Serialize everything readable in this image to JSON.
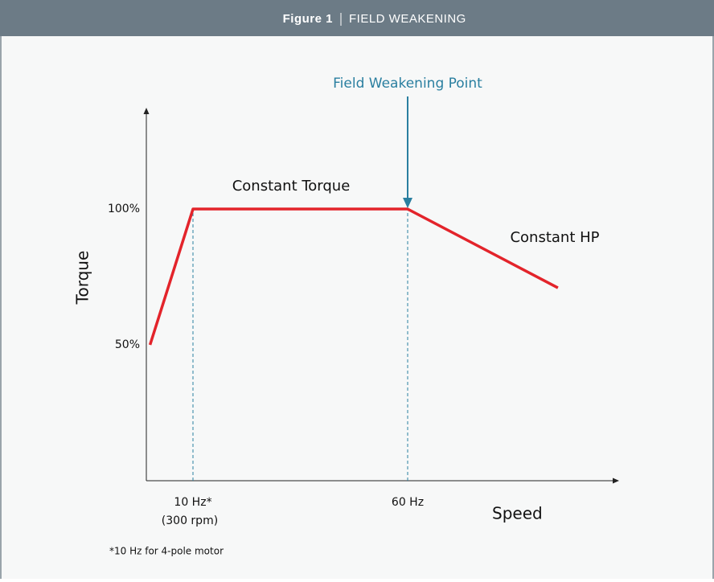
{
  "chart_data": {
    "type": "line",
    "figure_label": "Figure 1",
    "title": "FIELD WEAKENING",
    "x_label": "Speed",
    "y_label": "Torque",
    "xlim": [
      0,
      110
    ],
    "ylim": [
      0,
      137
    ],
    "xticks": [
      {
        "value": 10,
        "label": "10 Hz*"
      },
      {
        "value": 60,
        "label": "60 Hz"
      }
    ],
    "yticks": [
      {
        "value": 50,
        "label": "50%"
      },
      {
        "value": 100,
        "label": "100%"
      }
    ],
    "series": [
      {
        "name": "Torque",
        "color": "#e3242b",
        "x": [
          0,
          10,
          60,
          95
        ],
        "values": [
          50,
          100,
          100,
          71
        ]
      }
    ],
    "annotations": [
      "Field Weakening Point",
      "Constant Torque",
      "Constant HP",
      "(300 rpm)"
    ],
    "footnote": "*10 Hz for 4-pole motor"
  }
}
